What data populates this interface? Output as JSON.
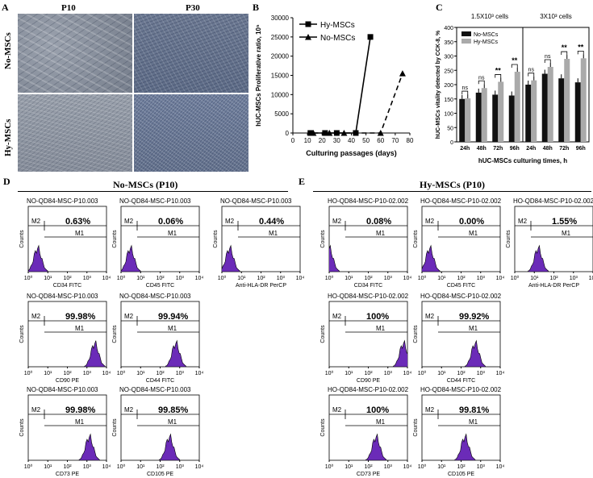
{
  "panels": {
    "A": "A",
    "B": "B",
    "C": "C",
    "D": "D",
    "E": "E"
  },
  "panel_a": {
    "col_p10": "P10",
    "col_p30": "P30",
    "row_no": "No-MSCs",
    "row_hy": "Hy-MSCs"
  },
  "chart_data": [
    {
      "id": "B",
      "type": "line",
      "xlabel": "Culturing passages  (days)",
      "ylabel": "hUC-MSCs Proliferative ratio, 10⁵",
      "xlim": [
        0,
        80
      ],
      "ylim": [
        0,
        30000
      ],
      "xticks": [
        "0",
        "10",
        "20",
        "30",
        "40",
        "50",
        "60",
        "70",
        "80"
      ],
      "yticks": [
        "0",
        "5000",
        "10000",
        "15000",
        "20000",
        "25000",
        "30000"
      ],
      "series": [
        {
          "name": "Hy-MSCs",
          "x": [
            12,
            22,
            30,
            43,
            53
          ],
          "y": [
            0,
            0,
            0,
            0,
            25000
          ]
        },
        {
          "name": "No-MSCs",
          "x": [
            14,
            25,
            35,
            60,
            75
          ],
          "y": [
            0,
            0,
            0,
            0,
            15500
          ]
        }
      ]
    },
    {
      "id": "C",
      "type": "bar",
      "title_left": "1.5X10³ cells",
      "title_right": "3X10³ cells",
      "xlabel": "hUC-MSCs culturing times, h",
      "ylabel": "hUC-MSCs vitality detected by CCK-8, %",
      "ylim": [
        0,
        400
      ],
      "yticks": [
        "0",
        "50",
        "100",
        "150",
        "200",
        "250",
        "300",
        "350",
        "400"
      ],
      "categories": [
        "24h",
        "48h",
        "72h",
        "96h",
        "24h",
        "48h",
        "72h",
        "96h"
      ],
      "significance": [
        "ns",
        "ns",
        "**",
        "**",
        "ns",
        "ns",
        "**",
        "**"
      ],
      "series": [
        {
          "name": "No-MSCs",
          "values": [
            150,
            172,
            165,
            162,
            200,
            238,
            222,
            208
          ]
        },
        {
          "name": "Hy-MSCs",
          "values": [
            152,
            188,
            210,
            245,
            215,
            262,
            290,
            292
          ]
        }
      ]
    }
  ],
  "panel_d": {
    "title": "No-MSCs (P10)",
    "plots": [
      {
        "header": "NO-QD84-MSC-P10.003",
        "value": "0.63%",
        "xlabel": "CD34 FITC",
        "m1": "M1",
        "m2": "M2",
        "peak": 0.12
      },
      {
        "header": "NO-QD84-MSC-P10.003",
        "value": "0.06%",
        "xlabel": "CD45 FITC",
        "m1": "M1",
        "m2": "M2",
        "peak": 0.12
      },
      {
        "header": "NO-QD84-MSC-P10.003",
        "value": "0.44%",
        "xlabel": "Anti-HLA-DR PerCP",
        "m1": "M1",
        "m2": "M2",
        "peak": 0.1
      },
      {
        "header": "NO-QD84-MSC-P10.003",
        "value": "99.98%",
        "xlabel": "CD90 PE",
        "m1": "M1",
        "m2": "M2",
        "peak": 0.85
      },
      {
        "header": "NO-QD84-MSC-P10.003",
        "value": "99.94%",
        "xlabel": "CD44 FITC",
        "m1": "M1",
        "m2": "M2",
        "peak": 0.7
      },
      {
        "header": "NO-QD84-MSC-P10.003",
        "value": "99.98%",
        "xlabel": "CD73 PE",
        "m1": "M1",
        "m2": "M2",
        "peak": 0.78
      },
      {
        "header": "NO-QD84-MSC-P10.003",
        "value": "99.85%",
        "xlabel": "CD105 PE",
        "m1": "M1",
        "m2": "M2",
        "peak": 0.62
      }
    ]
  },
  "panel_e": {
    "title": "Hy-MSCs (P10)",
    "plots": [
      {
        "header": "HO-QD84-MSC-P10-02.002",
        "value": "0.08%",
        "xlabel": "CD34 FITC",
        "m1": "M1",
        "m2": "M2",
        "peak": 0.0
      },
      {
        "header": "HO-QD84-MSC-P10-02.002",
        "value": "0.00%",
        "xlabel": "CD45 FITC",
        "m1": "M1",
        "m2": "M2",
        "peak": 0.1
      },
      {
        "header": "HO-QD84-MSC-P10-02.002",
        "value": "1.55%",
        "xlabel": "Anti-HLA-DR PerCP",
        "m1": "M1",
        "m2": "M2",
        "peak": 0.3
      },
      {
        "header": "HO-QD84-MSC-P10-02.002",
        "value": "100%",
        "xlabel": "CD90 PE",
        "m1": "M1",
        "m2": "M2",
        "peak": 0.95
      },
      {
        "header": "HO-QD84-MSC-P10-02.002",
        "value": "99.92%",
        "xlabel": "CD44 FITC",
        "m1": "M1",
        "m2": "M2",
        "peak": 0.68
      },
      {
        "header": "HO-QD84-MSC-P10-02.002",
        "value": "100%",
        "xlabel": "CD73 PE",
        "m1": "M1",
        "m2": "M2",
        "peak": 0.6
      },
      {
        "header": "HO-QD84-MSC-P10-02.002",
        "value": "99.81%",
        "xlabel": "CD105 PE",
        "m1": "M1",
        "m2": "M2",
        "peak": 0.55
      }
    ]
  },
  "flow_common": {
    "ylabel": "Counts",
    "ticks_x": [
      "10⁰",
      "10¹",
      "10²",
      "10³",
      "10⁴"
    ]
  }
}
